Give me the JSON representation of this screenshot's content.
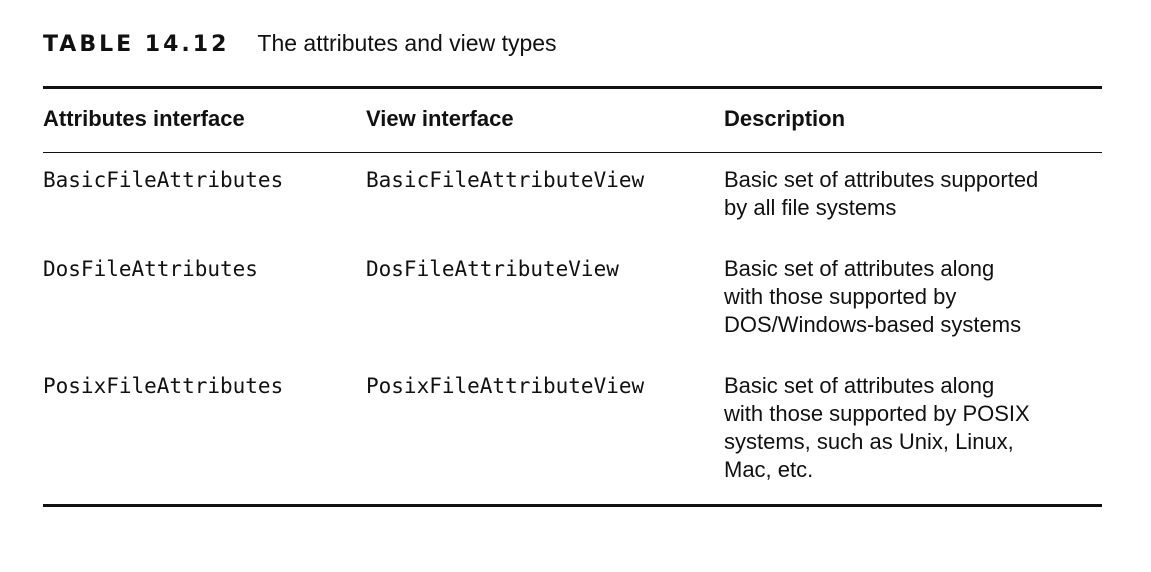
{
  "caption": {
    "label": "TABLE 14.12",
    "title": "The attributes and view types"
  },
  "table": {
    "columns": [
      "Attributes interface",
      "View interface",
      "Description"
    ],
    "rows": [
      {
        "attributes": "BasicFileAttributes",
        "view": "BasicFileAttributeView",
        "description_lines": [
          "Basic set of attributes supported",
          "by all file systems"
        ]
      },
      {
        "attributes": "DosFileAttributes",
        "view": "DosFileAttributeView",
        "description_lines": [
          "Basic set of attributes along",
          "with those supported by",
          "DOS/Windows-based systems"
        ]
      },
      {
        "attributes": "PosixFileAttributes",
        "view": "PosixFileAttributeView",
        "description_lines": [
          "Basic set of attributes along",
          "with those supported by POSIX",
          "systems, such as Unix, Linux,",
          "Mac, etc."
        ]
      }
    ]
  }
}
